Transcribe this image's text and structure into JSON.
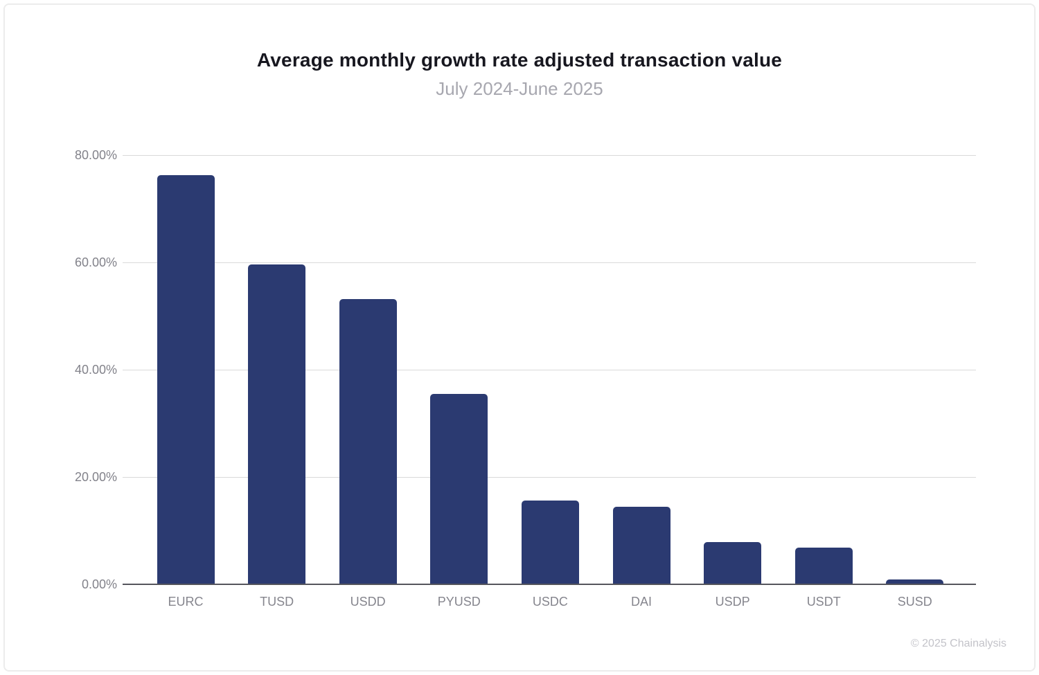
{
  "header": {
    "title": "Average monthly growth rate adjusted transaction value",
    "subtitle": "July 2024-June 2025"
  },
  "footer": {
    "copyright": "© 2025 Chainalysis"
  },
  "chart_data": {
    "type": "bar",
    "title": "Average monthly growth rate adjusted transaction value",
    "subtitle": "July 2024-June 2025",
    "categories": [
      "EURC",
      "TUSD",
      "USDD",
      "PYUSD",
      "USDC",
      "DAI",
      "USDP",
      "USDT",
      "SUSD"
    ],
    "values": [
      76.3,
      59.6,
      53.2,
      35.5,
      15.6,
      14.4,
      7.9,
      6.9,
      0.9
    ],
    "unit": "%",
    "xlabel": "",
    "ylabel": "",
    "ylim": [
      0,
      80
    ],
    "grid": true,
    "legend": "none",
    "yticks": [
      {
        "value": 0,
        "label": "0.00%"
      },
      {
        "value": 20,
        "label": "20.00%"
      },
      {
        "value": 40,
        "label": "40.00%"
      },
      {
        "value": 60,
        "label": "60.00%"
      },
      {
        "value": 80,
        "label": "80.00%"
      }
    ],
    "bar_color": "#2b3a71",
    "gridline_color": "#d9d9d9",
    "axis_line_color": "#55555c"
  }
}
